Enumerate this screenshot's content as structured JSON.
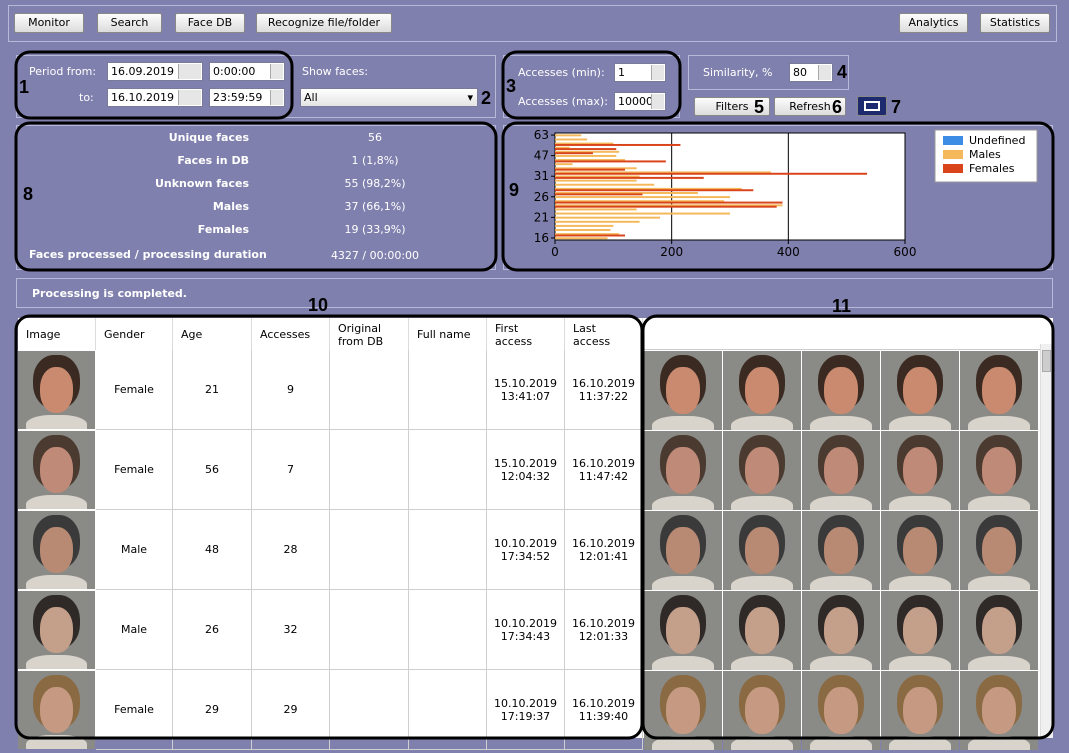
{
  "toolbar": {
    "left": [
      "Monitor",
      "Search",
      "Face DB",
      "Recognize file/folder"
    ],
    "right": [
      "Analytics",
      "Statistics"
    ]
  },
  "filters": {
    "period_from_label": "Period from:",
    "period_to_label": "to:",
    "date_from": "16.09.2019",
    "time_from": "0:00:00",
    "date_to": "16.10.2019",
    "time_to": "23:59:59",
    "show_faces_label": "Show faces:",
    "show_faces_value": "All",
    "accesses_min_label": "Accesses (min):",
    "accesses_min": "1",
    "accesses_max_label": "Accesses (max):",
    "accesses_max": "10000",
    "similarity_label": "Similarity, %",
    "similarity": "80",
    "filters_button": "Filters",
    "refresh_button": "Refresh"
  },
  "stats": {
    "rows": [
      [
        "Unique faces",
        "56"
      ],
      [
        "Faces in DB",
        "1 (1,8%)"
      ],
      [
        "Unknown faces",
        "55 (98,2%)"
      ],
      [
        "Males",
        "37 (66,1%)"
      ],
      [
        "Females",
        "19 (33,9%)"
      ]
    ],
    "processed_label": "Faces processed / processing duration",
    "processed_value": "4327 / 00:00:00"
  },
  "chart_data": {
    "type": "bar",
    "orientation": "horizontal",
    "categories": [
      "63",
      null,
      null,
      null,
      null,
      "47",
      null,
      null,
      null,
      null,
      "31",
      null,
      null,
      null,
      null,
      "26",
      null,
      null,
      null,
      null,
      "21",
      null,
      null,
      null,
      null,
      "16"
    ],
    "series": [
      {
        "name": "Undefined",
        "color": "#3c8ce6",
        "values": [
          0,
          0,
          0,
          0,
          0,
          0,
          0,
          0,
          0,
          0,
          0,
          0,
          0,
          0,
          0,
          0,
          0,
          0,
          0,
          0,
          0,
          0,
          0,
          0,
          0,
          0
        ]
      },
      {
        "name": "Males",
        "color": "#f5b85a",
        "values": [
          45,
          55,
          100,
          25,
          110,
          105,
          120,
          30,
          140,
          370,
          145,
          140,
          170,
          320,
          245,
          300,
          290,
          390,
          140,
          300,
          180,
          145,
          100,
          95,
          110,
          90
        ]
      },
      {
        "name": "Females",
        "color": "#d9441a",
        "values": [
          0,
          0,
          215,
          105,
          65,
          0,
          190,
          0,
          120,
          535,
          255,
          0,
          0,
          340,
          150,
          0,
          390,
          380,
          0,
          0,
          0,
          0,
          0,
          0,
          120,
          0
        ]
      }
    ],
    "xlim": [
      0,
      600
    ],
    "xticks": [
      0,
      200,
      400,
      600
    ],
    "grid": true,
    "legend": "top-right"
  },
  "status": "Processing is completed.",
  "table": {
    "header": [
      "Image",
      "Gender",
      "Age",
      "Accesses",
      "Original from DB",
      "Full name",
      "First access",
      "Last access"
    ],
    "rows": [
      {
        "gender": "Female",
        "age": "21",
        "accesses": "9",
        "first_access": [
          "15.10.2019",
          "13:41:07"
        ],
        "last_access": [
          "16.10.2019",
          "11:37:22"
        ]
      },
      {
        "gender": "Female",
        "age": "56",
        "accesses": "7",
        "first_access": [
          "15.10.2019",
          "12:04:32"
        ],
        "last_access": [
          "16.10.2019",
          "11:47:42"
        ]
      },
      {
        "gender": "Male",
        "age": "48",
        "accesses": "28",
        "first_access": [
          "10.10.2019",
          "17:34:52"
        ],
        "last_access": [
          "16.10.2019",
          "12:01:41"
        ]
      },
      {
        "gender": "Male",
        "age": "26",
        "accesses": "32",
        "first_access": [
          "10.10.2019",
          "17:34:43"
        ],
        "last_access": [
          "16.10.2019",
          "12:01:33"
        ]
      },
      {
        "gender": "Female",
        "age": "29",
        "accesses": "29",
        "first_access": [
          "10.10.2019",
          "17:19:37"
        ],
        "last_access": [
          "16.10.2019",
          "11:39:40"
        ]
      }
    ]
  },
  "callouts": [
    "1",
    "2",
    "3",
    "4",
    "5",
    "6",
    "7",
    "8",
    "9",
    "10",
    "11"
  ]
}
